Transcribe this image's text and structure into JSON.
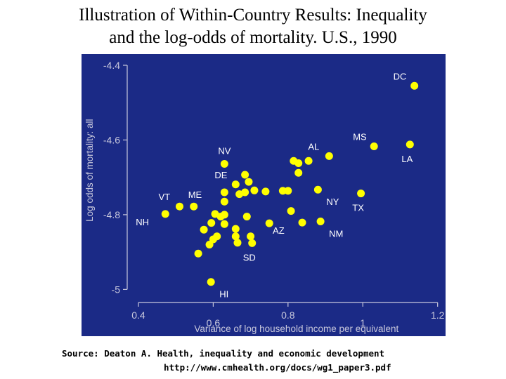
{
  "title_lines": [
    "Illustration of Within-Country Results: Inequality",
    "and the log-odds of mortality. U.S., 1990"
  ],
  "source": {
    "line1": "Source: Deaton A.  Health, inequality and economic development",
    "line2": "http://www.cmhealth.org/docs/wg1_paper3.pdf"
  },
  "colors": {
    "panel_background": "#1b2a86",
    "points": "#ffff00",
    "axis_text": "#c8c8dc",
    "state_labels": "#ffffff"
  },
  "chart_data": {
    "type": "scatter",
    "xlabel": "Variance of log household income per equivalent",
    "ylabel": "Log odds of mortality: all",
    "xlim": [
      0.37,
      1.21
    ],
    "ylim": [
      -5.02,
      -4.4
    ],
    "xticks": [
      {
        "value": 0.4,
        "label": "0.4"
      },
      {
        "value": 0.6,
        "label": "0.6"
      },
      {
        "value": 0.8,
        "label": "0.8"
      },
      {
        "value": 1.0,
        "label": "1"
      },
      {
        "value": 1.2,
        "label": "1.2"
      }
    ],
    "yticks": [
      {
        "value": -4.4,
        "label": "-4.4"
      },
      {
        "value": -4.6,
        "label": "-4.6"
      },
      {
        "value": -4.8,
        "label": "-4.8"
      },
      {
        "value": -5.0,
        "label": "-5"
      }
    ],
    "grid": false,
    "points": [
      {
        "label": "DC",
        "x": 1.138,
        "y": -4.455
      },
      {
        "label": "MS",
        "x": 1.03,
        "y": -4.617
      },
      {
        "label": "LA",
        "x": 1.126,
        "y": -4.612
      },
      {
        "label": "AL",
        "x": 0.91,
        "y": -4.643
      },
      {
        "label": "NV",
        "x": 0.63,
        "y": -4.664
      },
      {
        "label": "DE",
        "x": 0.66,
        "y": -4.719
      },
      {
        "label": "NY",
        "x": 0.88,
        "y": -4.733
      },
      {
        "label": "TX",
        "x": 0.995,
        "y": -4.743
      },
      {
        "label": "ME",
        "x": 0.548,
        "y": -4.778
      },
      {
        "label": "VT",
        "x": 0.51,
        "y": -4.778
      },
      {
        "label": "NH",
        "x": 0.472,
        "y": -4.798
      },
      {
        "label": "NM",
        "x": 0.887,
        "y": -4.818
      },
      {
        "label": "AZ",
        "x": 0.838,
        "y": -4.821
      },
      {
        "label": "SD",
        "x": 0.704,
        "y": -4.876
      },
      {
        "label": "HI",
        "x": 0.594,
        "y": -4.98
      },
      {
        "label": "",
        "x": 0.815,
        "y": -4.656
      },
      {
        "label": "",
        "x": 0.828,
        "y": -4.662
      },
      {
        "label": "",
        "x": 0.855,
        "y": -4.656
      },
      {
        "label": "",
        "x": 0.828,
        "y": -4.688
      },
      {
        "label": "",
        "x": 0.786,
        "y": -4.736
      },
      {
        "label": "",
        "x": 0.8,
        "y": -4.736
      },
      {
        "label": "",
        "x": 0.685,
        "y": -4.693
      },
      {
        "label": "",
        "x": 0.695,
        "y": -4.712
      },
      {
        "label": "",
        "x": 0.71,
        "y": -4.735
      },
      {
        "label": "",
        "x": 0.685,
        "y": -4.74
      },
      {
        "label": "",
        "x": 0.74,
        "y": -4.738
      },
      {
        "label": "",
        "x": 0.63,
        "y": -4.74
      },
      {
        "label": "",
        "x": 0.67,
        "y": -4.745
      },
      {
        "label": "",
        "x": 0.63,
        "y": -4.765
      },
      {
        "label": "",
        "x": 0.808,
        "y": -4.79
      },
      {
        "label": "",
        "x": 0.605,
        "y": -4.798
      },
      {
        "label": "",
        "x": 0.62,
        "y": -4.805
      },
      {
        "label": "",
        "x": 0.63,
        "y": -4.8
      },
      {
        "label": "",
        "x": 0.69,
        "y": -4.805
      },
      {
        "label": "",
        "x": 0.595,
        "y": -4.822
      },
      {
        "label": "",
        "x": 0.63,
        "y": -4.825
      },
      {
        "label": "",
        "x": 0.75,
        "y": -4.823
      },
      {
        "label": "",
        "x": 0.66,
        "y": -4.838
      },
      {
        "label": "",
        "x": 0.575,
        "y": -4.84
      },
      {
        "label": "",
        "x": 0.61,
        "y": -4.858
      },
      {
        "label": "",
        "x": 0.66,
        "y": -4.858
      },
      {
        "label": "",
        "x": 0.7,
        "y": -4.858
      },
      {
        "label": "",
        "x": 0.6,
        "y": -4.866
      },
      {
        "label": "",
        "x": 0.665,
        "y": -4.875
      },
      {
        "label": "",
        "x": 0.59,
        "y": -4.88
      },
      {
        "label": "",
        "x": 0.56,
        "y": -4.904
      }
    ],
    "label_placement": {
      "DC": "upper-left",
      "MS": "upper-left",
      "LA": "below",
      "AL": "upper-left",
      "NV": "above",
      "DE": "upper-left",
      "NY": "lower-right",
      "TX": "below",
      "ME": "upper-right",
      "VT": "upper-left",
      "NH": "lower-left",
      "NM": "lower-right",
      "AZ": "lower-left",
      "SD": "below",
      "HI": "lower-right"
    }
  }
}
